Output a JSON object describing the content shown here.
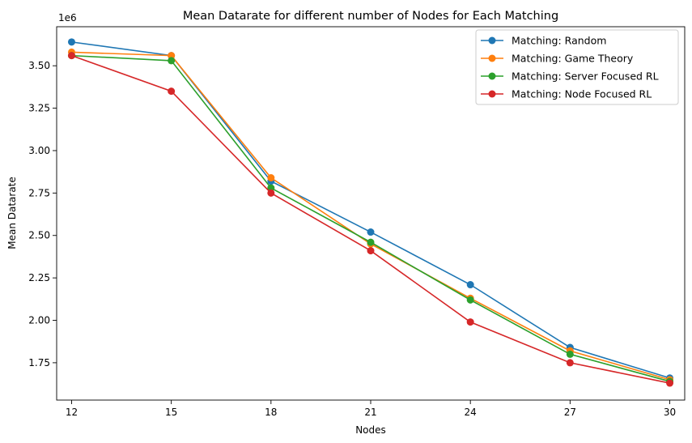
{
  "chart_data": {
    "type": "line",
    "title": "Mean Datarate for different number of Nodes for Each Matching",
    "xlabel": "Nodes",
    "ylabel": "Mean Datarate",
    "y_offset_label": "1e6",
    "x": [
      12,
      15,
      18,
      21,
      24,
      27,
      30
    ],
    "x_ticks": [
      "12",
      "15",
      "18",
      "21",
      "24",
      "27",
      "30"
    ],
    "y_ticks": [
      1.75,
      2.0,
      2.25,
      2.5,
      2.75,
      3.0,
      3.25,
      3.5
    ],
    "y_tick_labels": [
      "1.75",
      "2.00",
      "2.25",
      "2.50",
      "2.75",
      "3.00",
      "3.25",
      "3.50"
    ],
    "xlim": [
      11.55,
      30.45
    ],
    "ylim": [
      1.53,
      3.73
    ],
    "grid": false,
    "legend_position": "top-right",
    "series": [
      {
        "name": "Matching: Random",
        "color": "#1f77b4",
        "values": [
          3.64,
          3.56,
          2.82,
          2.52,
          2.21,
          1.84,
          1.66
        ]
      },
      {
        "name": "Matching: Game Theory",
        "color": "#ff7f0e",
        "values": [
          3.58,
          3.56,
          2.84,
          2.45,
          2.13,
          1.82,
          1.65
        ]
      },
      {
        "name": "Matching: Server Focused RL",
        "color": "#2ca02c",
        "values": [
          3.56,
          3.53,
          2.78,
          2.46,
          2.12,
          1.8,
          1.64
        ]
      },
      {
        "name": "Matching: Node Focused RL",
        "color": "#d62728",
        "values": [
          3.56,
          3.35,
          2.75,
          2.41,
          1.99,
          1.75,
          1.63
        ]
      }
    ]
  }
}
